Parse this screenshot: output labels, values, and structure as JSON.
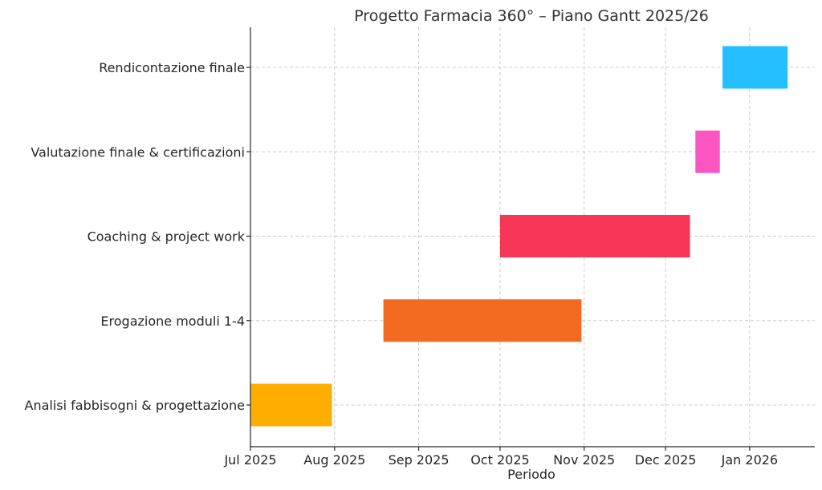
{
  "chart_data": {
    "type": "gantt",
    "title": "Progetto Farmacia 360° – Piano Gantt 2025/26",
    "xlabel": "Periodo",
    "ylabel": "",
    "x_axis": "date",
    "xlim": [
      "2025-07-01",
      "2026-01-25"
    ],
    "x_ticks": [
      {
        "date": "2025-07-01",
        "label": "Jul 2025"
      },
      {
        "date": "2025-08-01",
        "label": "Aug 2025"
      },
      {
        "date": "2025-09-01",
        "label": "Sep 2025"
      },
      {
        "date": "2025-10-01",
        "label": "Oct 2025"
      },
      {
        "date": "2025-11-01",
        "label": "Nov 2025"
      },
      {
        "date": "2025-12-01",
        "label": "Dec 2025"
      },
      {
        "date": "2026-01-01",
        "label": "Jan 2026"
      }
    ],
    "grid": true,
    "tasks": [
      {
        "name": "Analisi fabbisogni & progettazione",
        "start": "2025-07-01",
        "end": "2025-07-31",
        "color": "#FFAE00"
      },
      {
        "name": "Erogazione moduli 1-4",
        "start": "2025-08-19",
        "end": "2025-10-31",
        "color": "#F26B21"
      },
      {
        "name": "Coaching & project work",
        "start": "2025-10-01",
        "end": "2025-12-10",
        "color": "#F53655"
      },
      {
        "name": "Valutazione finale & certificazioni",
        "start": "2025-12-12",
        "end": "2025-12-21",
        "color": "#FB56C1"
      },
      {
        "name": "Rendicontazione finale",
        "start": "2025-12-22",
        "end": "2026-01-15",
        "color": "#25BEFF"
      }
    ]
  }
}
